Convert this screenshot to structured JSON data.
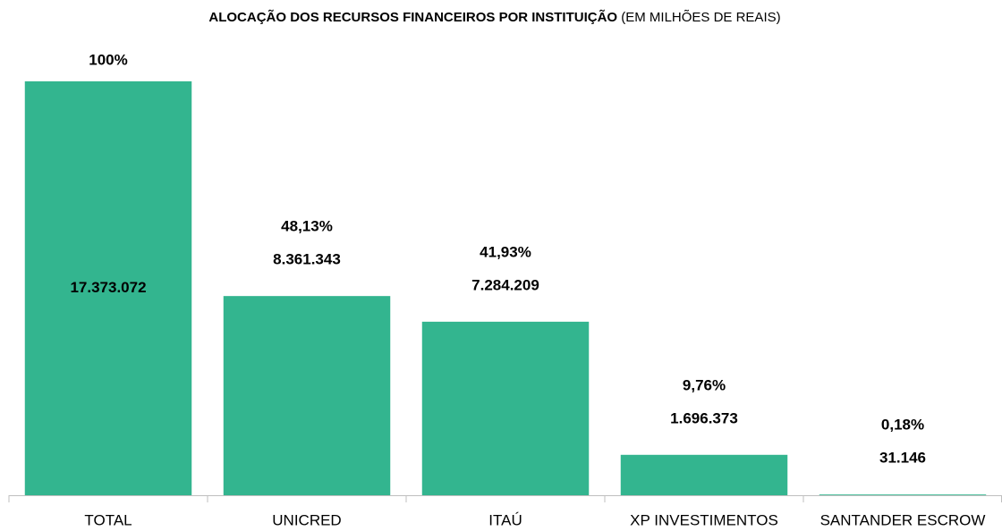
{
  "chart_data": {
    "type": "bar",
    "title": "ALOCAÇÃO DOS RECURSOS FINANCEIROS POR INSTITUIÇÃO",
    "subtitle": "(EM MILHÕES DE REAIS)",
    "categories": [
      "TOTAL",
      "UNICRED",
      "ITAÚ",
      "XP INVESTIMENTOS",
      "SANTANDER ESCROW"
    ],
    "values": [
      17373072,
      8361343,
      7284209,
      1696373,
      31146
    ],
    "value_labels": [
      "17.373.072",
      "8.361.343",
      "7.284.209",
      "1.696.373",
      "31.146"
    ],
    "percentages": [
      100,
      48.13,
      41.93,
      9.76,
      0.18
    ],
    "percentage_labels": [
      "100%",
      "48,13%",
      "41,93%",
      "9,76%",
      "0,18%"
    ],
    "color": "#33b58f"
  }
}
